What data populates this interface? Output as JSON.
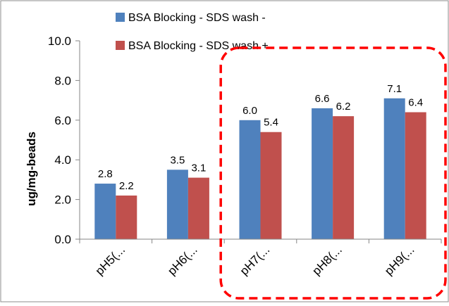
{
  "chart_data": {
    "type": "bar",
    "title": "",
    "xlabel": "",
    "ylabel": "ug/mg-beads",
    "ylim": [
      0,
      10
    ],
    "yticks": [
      "0.0",
      "2.0",
      "4.0",
      "6.0",
      "8.0",
      "10.0"
    ],
    "ytick_values": [
      0,
      2,
      4,
      6,
      8,
      10
    ],
    "categories": [
      "pH5(...",
      "pH6(...",
      "pH7(...",
      "pH8(...",
      "pH9(..."
    ],
    "series": [
      {
        "name": "BSA Blocking - SDS wash -",
        "color": "#4F81BD",
        "values": [
          2.8,
          3.5,
          6.0,
          6.6,
          7.1
        ],
        "labels": [
          "2.8",
          "3.5",
          "6.0",
          "6.6",
          "7.1"
        ]
      },
      {
        "name": "BSA Blocking - SDS wash +",
        "color": "#C0504D",
        "values": [
          2.2,
          3.1,
          5.4,
          6.2,
          6.4
        ],
        "labels": [
          "2.2",
          "3.1",
          "5.4",
          "6.2",
          "6.4"
        ]
      }
    ],
    "legend_position": "top",
    "grid": false,
    "annotation": {
      "shape": "dashed-rounded-rectangle",
      "color": "#FF0000",
      "covers": [
        "pH7(...",
        "pH8(...",
        "pH9(..."
      ]
    }
  }
}
